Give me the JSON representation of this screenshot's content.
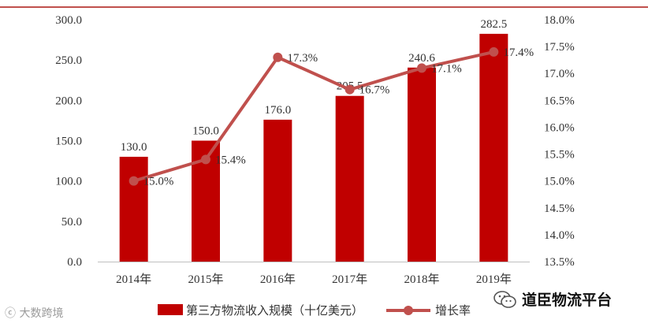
{
  "chart_data": {
    "type": "bar",
    "categories": [
      "2014年",
      "2015年",
      "2016年",
      "2017年",
      "2018年",
      "2019年"
    ],
    "series": [
      {
        "name": "第三方物流收入规模（十亿美元）",
        "type": "bar",
        "axis": "left",
        "values": [
          130.0,
          150.0,
          176.0,
          205.5,
          240.6,
          282.5
        ],
        "labels": [
          "130.0",
          "150.0",
          "176.0",
          "205.5",
          "240.6",
          "282.5"
        ],
        "color": "#c00000"
      },
      {
        "name": "增长率",
        "type": "line",
        "axis": "right",
        "values": [
          15.0,
          15.4,
          17.3,
          16.7,
          17.1,
          17.4
        ],
        "labels": [
          "15.0%",
          "15.4%",
          "17.3%",
          "16.7%",
          "17.1%",
          "17.4%"
        ],
        "color": "#c0504d"
      }
    ],
    "y_left": {
      "min": 0,
      "max": 300,
      "ticks": [
        "0.0",
        "50.0",
        "100.0",
        "150.0",
        "200.0",
        "250.0",
        "300.0"
      ]
    },
    "y_right": {
      "min": 13.5,
      "max": 18.0,
      "ticks": [
        "13.5%",
        "14.0%",
        "14.5%",
        "15.0%",
        "15.5%",
        "16.0%",
        "16.5%",
        "17.0%",
        "17.5%",
        "18.0%"
      ]
    },
    "grid": false,
    "legend_position": "bottom",
    "title": "",
    "xlabel": "",
    "ylabel": ""
  },
  "watermark": {
    "left": "ⓒ 大数跨境",
    "right": "道臣物流平台",
    "right_icon": "wechat-icon"
  }
}
